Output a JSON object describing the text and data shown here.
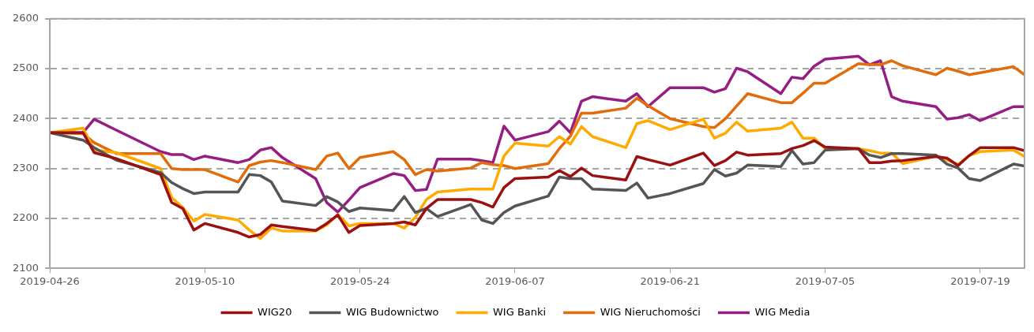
{
  "chart_data": {
    "type": "line",
    "x": [
      "2019-04-26",
      "2019-04-29",
      "2019-04-30",
      "2019-05-02",
      "2019-05-06",
      "2019-05-07",
      "2019-05-08",
      "2019-05-09",
      "2019-05-10",
      "2019-05-13",
      "2019-05-14",
      "2019-05-15",
      "2019-05-16",
      "2019-05-17",
      "2019-05-20",
      "2019-05-21",
      "2019-05-22",
      "2019-05-23",
      "2019-05-24",
      "2019-05-27",
      "2019-05-28",
      "2019-05-29",
      "2019-05-30",
      "2019-05-31",
      "2019-06-03",
      "2019-06-04",
      "2019-06-05",
      "2019-06-06",
      "2019-06-07",
      "2019-06-10",
      "2019-06-11",
      "2019-06-12",
      "2019-06-13",
      "2019-06-14",
      "2019-06-17",
      "2019-06-18",
      "2019-06-19",
      "2019-06-21",
      "2019-06-24",
      "2019-06-25",
      "2019-06-26",
      "2019-06-27",
      "2019-06-28",
      "2019-07-01",
      "2019-07-02",
      "2019-07-03",
      "2019-07-04",
      "2019-07-05",
      "2019-07-08",
      "2019-07-09",
      "2019-07-10",
      "2019-07-11",
      "2019-07-12",
      "2019-07-15",
      "2019-07-16",
      "2019-07-17",
      "2019-07-18",
      "2019-07-19",
      "2019-07-22",
      "2019-07-23"
    ],
    "series": [
      {
        "name": "WIG20",
        "color": "#9b1010",
        "values": [
          2372,
          2372,
          2332,
          2320,
          2288,
          2232,
          2220,
          2177,
          2190,
          2172,
          2163,
          2168,
          2187,
          2184,
          2176,
          2190,
          2207,
          2172,
          2186,
          2190,
          2193,
          2187,
          2220,
          2238,
          2238,
          2232,
          2223,
          2262,
          2280,
          2283,
          2296,
          2284,
          2301,
          2286,
          2277,
          2324,
          2318,
          2307,
          2331,
          2306,
          2316,
          2333,
          2327,
          2330,
          2340,
          2346,
          2356,
          2343,
          2340,
          2312,
          2312,
          2315,
          2316,
          2324,
          2321,
          2306,
          2326,
          2342,
          2342,
          2336
        ]
      },
      {
        "name": "WIG Budownictwo",
        "color": "#555555",
        "values": [
          2372,
          2357,
          2342,
          2317,
          2292,
          2272,
          2260,
          2250,
          2253,
          2253,
          2288,
          2286,
          2273,
          2235,
          2226,
          2244,
          2233,
          2214,
          2221,
          2216,
          2244,
          2212,
          2220,
          2204,
          2228,
          2197,
          2190,
          2212,
          2225,
          2245,
          2283,
          2280,
          2280,
          2259,
          2256,
          2271,
          2241,
          2250,
          2270,
          2298,
          2285,
          2291,
          2307,
          2304,
          2336,
          2309,
          2312,
          2337,
          2340,
          2327,
          2322,
          2330,
          2330,
          2327,
          2309,
          2301,
          2280,
          2276,
          2309,
          2305
        ]
      },
      {
        "name": "WIG Banki",
        "color": "#ffaa00",
        "values": [
          2372,
          2381,
          2337,
          2332,
          2300,
          2242,
          2222,
          2195,
          2208,
          2197,
          2177,
          2160,
          2181,
          2175,
          2175,
          2187,
          2208,
          2185,
          2190,
          2190,
          2181,
          2202,
          2238,
          2253,
          2259,
          2259,
          2259,
          2325,
          2351,
          2345,
          2364,
          2349,
          2384,
          2364,
          2342,
          2390,
          2396,
          2378,
          2399,
          2361,
          2371,
          2393,
          2375,
          2381,
          2393,
          2361,
          2361,
          2340,
          2340,
          2336,
          2331,
          2331,
          2310,
          2325,
          2317,
          2308,
          2326,
          2334,
          2337,
          2324
        ]
      },
      {
        "name": "WIG Nieruchomości",
        "color": "#e36c0a",
        "values": [
          2372,
          2370,
          2352,
          2330,
          2330,
          2300,
          2298,
          2298,
          2298,
          2273,
          2306,
          2313,
          2316,
          2312,
          2298,
          2325,
          2331,
          2300,
          2322,
          2334,
          2318,
          2288,
          2298,
          2295,
          2301,
          2312,
          2308,
          2306,
          2300,
          2310,
          2340,
          2365,
          2411,
          2411,
          2421,
          2441,
          2426,
          2400,
          2384,
          2382,
          2400,
          2425,
          2450,
          2432,
          2432,
          2451,
          2471,
          2471,
          2510,
          2508,
          2508,
          2516,
          2506,
          2488,
          2501,
          2495,
          2488,
          2492,
          2504,
          2488
        ]
      },
      {
        "name": "WIG Media",
        "color": "#961e82",
        "values": [
          2372,
          2372,
          2399,
          2377,
          2334,
          2328,
          2328,
          2318,
          2325,
          2312,
          2318,
          2337,
          2342,
          2322,
          2280,
          2232,
          2213,
          2237,
          2262,
          2290,
          2286,
          2256,
          2258,
          2319,
          2319,
          2316,
          2312,
          2385,
          2357,
          2374,
          2395,
          2372,
          2435,
          2444,
          2435,
          2450,
          2424,
          2462,
          2462,
          2453,
          2460,
          2501,
          2494,
          2450,
          2483,
          2480,
          2505,
          2519,
          2525,
          2508,
          2516,
          2444,
          2435,
          2424,
          2399,
          2402,
          2408,
          2396,
          2424,
          2424
        ]
      }
    ],
    "xlim": [
      "2019-04-26",
      "2019-07-23"
    ],
    "xticks": [
      "2019-04-26",
      "2019-05-10",
      "2019-05-24",
      "2019-06-07",
      "2019-06-21",
      "2019-07-05",
      "2019-07-19"
    ],
    "ylim": [
      2100,
      2600
    ],
    "yticks": [
      2100,
      2200,
      2300,
      2400,
      2500,
      2600
    ],
    "grid": "y",
    "legend": "bottom",
    "line_style": "solid"
  }
}
